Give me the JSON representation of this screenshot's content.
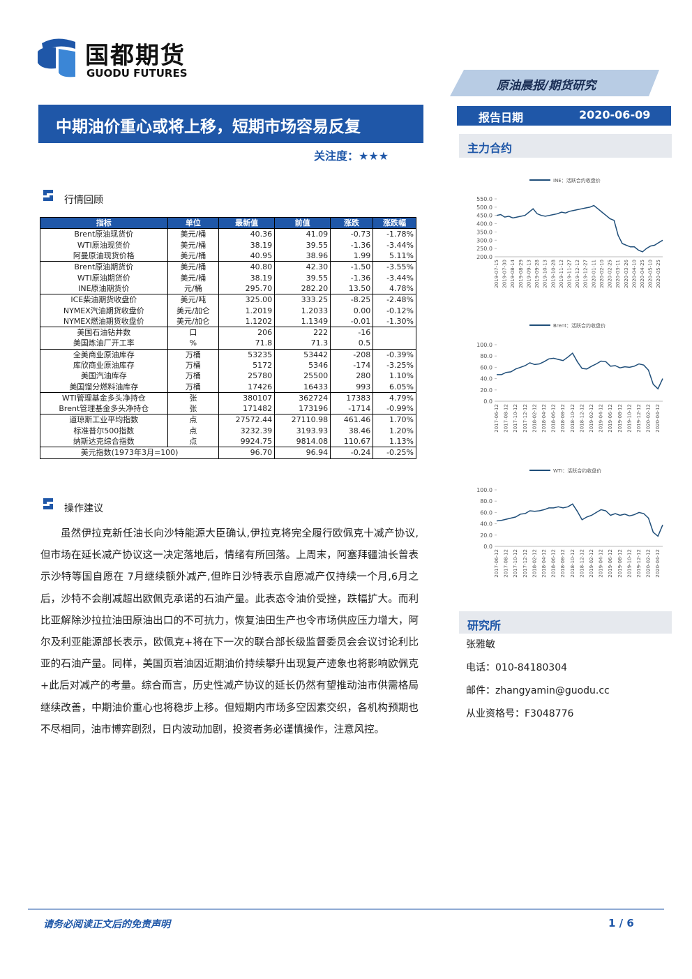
{
  "header": {
    "logo_cn": "国都期货",
    "logo_en": "GUODU FUTURES",
    "banner": "原油晨报/期货研究",
    "title": "中期油价重心或将上移，短期市场容易反复",
    "attention_label": "关注度：",
    "attention_stars": "★★★",
    "report_date_label": "报告日期",
    "report_date": "2020-06-09",
    "main_contract": "主力合约"
  },
  "section1": {
    "title": "行情回顾"
  },
  "table": {
    "header": [
      "指标",
      "单位",
      "最新值",
      "前值",
      "涨跌",
      "涨跌幅"
    ],
    "groups": [
      [
        [
          "Brent原油现货价",
          "美元/桶",
          "40.36",
          "41.09",
          "-0.73",
          "-1.78%"
        ],
        [
          "WTI原油现货价",
          "美元/桶",
          "38.19",
          "39.55",
          "-1.36",
          "-3.44%"
        ],
        [
          "阿曼原油现货价格",
          "美元/桶",
          "40.95",
          "38.96",
          "1.99",
          "5.11%"
        ]
      ],
      [
        [
          "Brent原油期货价",
          "美元/桶",
          "40.80",
          "42.30",
          "-1.50",
          "-3.55%"
        ],
        [
          "WTI原油期货价",
          "美元/桶",
          "38.19",
          "39.55",
          "-1.36",
          "-3.44%"
        ],
        [
          "INE原油期货价",
          "元/桶",
          "295.70",
          "282.20",
          "13.50",
          "4.78%"
        ]
      ],
      [
        [
          "ICE柴油期货收盘价",
          "美元/吨",
          "325.00",
          "333.25",
          "-8.25",
          "-2.48%"
        ],
        [
          "NYMEX汽油期货收盘价",
          "美元/加仑",
          "1.2019",
          "1.2033",
          "0.00",
          "-0.12%"
        ],
        [
          "NYMEX燃油期货收盘价",
          "美元/加仑",
          "1.1202",
          "1.1349",
          "-0.01",
          "-1.30%"
        ]
      ],
      [
        [
          "美国石油钻井数",
          "口",
          "206",
          "222",
          "-16"
        ],
        [
          "美国炼油厂开工率",
          "%",
          "71.8",
          "71.3",
          "0.5"
        ]
      ],
      [
        [
          "全美商业原油库存",
          "万桶",
          "53235",
          "53442",
          "-208",
          "-0.39%"
        ],
        [
          "库欣商业原油库存",
          "万桶",
          "5172",
          "5346",
          "-174",
          "-3.25%"
        ],
        [
          "美国汽油库存",
          "万桶",
          "25780",
          "25500",
          "280",
          "1.10%"
        ],
        [
          "美国馏分燃料油库存",
          "万桶",
          "17426",
          "16433",
          "993",
          "6.05%"
        ]
      ],
      [
        [
          "WTI管理基金多头净持仓",
          "张",
          "380107",
          "362724",
          "17383",
          "4.79%"
        ],
        [
          "Brent管理基金多头净持仓",
          "张",
          "171482",
          "173196",
          "-1714",
          "-0.99%"
        ]
      ],
      [
        [
          "道琼斯工业平均指数",
          "点",
          "27572.44",
          "27110.98",
          "461.46",
          "1.70%"
        ],
        [
          "标准普尔500指数",
          "点",
          "3232.39",
          "3193.93",
          "38.46",
          "1.20%"
        ],
        [
          "纳斯达克综合指数",
          "点",
          "9924.75",
          "9814.08",
          "110.67",
          "1.13%"
        ]
      ],
      [
        [
          "美元指数(1973年3月=100)",
          "96.70",
          "96.94",
          "-0.24",
          "-0.25%"
        ]
      ]
    ]
  },
  "section2": {
    "title": "操作建议",
    "text": "虽然伊拉克新任油长向沙特能源大臣确认,伊拉克将完全履行欧佩克十减产协议,但市场在延长减产协议这一决定落地后，情绪有所回落。上周末，阿塞拜疆油长曾表示沙特等国自愿在 7月继续额外减产,但昨日沙特表示自愿减产仅持续一个月,6月之后，沙特不会削减超出欧佩克承诺的石油产量。此表态令油价受挫，跌幅扩大。而利比亚解除沙拉拉油田原油出口的不可抗力，恢复油田生产也令市场供应压力增大，阿尔及利亚能源部长表示，欧佩克+将在下一次的联合部长级监督委员会会议讨论利比亚的石油产量。同样，美国页岩油因近期油价持续攀升出现复产迹象也将影响欧佩克+此后对减产的考量。综合而言，历史性减产协议的延长仍然有望推动油市供需格局继续改善，中期油价重心也将稳步上移。但短期内市场多空因素交织，各机构预期也不尽相同，油市博弈剧烈，日内波动加剧，投资者务必谨慎操作，注意风控。"
  },
  "research": {
    "title": "研究所",
    "name": "张雅敏",
    "phone": "电话：010-84180304",
    "email": "邮件：zhangyamin@guodu.cc",
    "license": "从业资格号：F3048776"
  },
  "footer": {
    "disclaimer": "请务必阅读正文后的免责声明",
    "page": "1 / 6"
  },
  "chart_data": [
    {
      "type": "line",
      "categories": [
        "2019-07-15",
        null,
        "2019-07-30",
        null,
        "2019-08-14",
        null,
        "2019-08-29",
        null,
        "2019-09-13",
        null,
        "2019-09-28",
        null,
        "2019-10-13",
        null,
        "2019-10-28",
        null,
        "2019-11-12",
        null,
        "2019-11-27",
        null,
        "2019-12-12",
        null,
        "2019-12-27",
        null,
        "2020-01-11",
        null,
        "2020-02-10",
        null,
        "2020-02-25",
        null,
        "2020-03-11",
        null,
        "2020-03-26",
        null,
        "2020-04-10",
        null,
        "2020-04-25",
        null,
        "2020-05-10",
        null,
        "2020-05-25",
        null
      ],
      "series": [
        {
          "name": "INE：活跃合约收盘价",
          "color": "#1f4e79",
          "values": [
            450,
            455,
            440,
            445,
            435,
            440,
            445,
            450,
            470,
            490,
            460,
            450,
            445,
            450,
            455,
            460,
            470,
            465,
            475,
            480,
            485,
            490,
            495,
            500,
            510,
            490,
            470,
            450,
            430,
            420,
            330,
            280,
            270,
            260,
            260,
            240,
            230,
            250,
            265,
            270,
            285,
            300
          ]
        }
      ],
      "ylim": [
        200,
        550
      ],
      "yticks": [
        {
          "value": 200,
          "label": "200.0"
        },
        {
          "value": 250,
          "label": "250.0"
        },
        {
          "value": 300,
          "label": "300.0"
        },
        {
          "value": 350,
          "label": "350.0"
        },
        {
          "value": 400,
          "label": "400.0"
        },
        {
          "value": 450,
          "label": "450.0"
        },
        {
          "value": 500,
          "label": "500.0"
        },
        {
          "value": 550,
          "label": "550.0"
        }
      ]
    },
    {
      "type": "line",
      "categories": [
        "2017-06-12",
        null,
        "2017-08-12",
        null,
        "2017-10-12",
        null,
        "2017-12-12",
        null,
        "2018-02-12",
        null,
        "2018-04-12",
        null,
        "2018-06-12",
        null,
        "2018-08-12",
        null,
        "2018-10-12",
        null,
        "2018-12-12",
        null,
        "2019-02-12",
        null,
        "2019-04-12",
        null,
        "2019-06-12",
        null,
        "2019-08-12",
        null,
        "2019-10-12",
        null,
        "2019-12-12",
        null,
        "2020-02-12",
        null,
        "2020-04-12",
        null
      ],
      "series": [
        {
          "name": "Brent：活跃合约收盘价",
          "color": "#1f4e79",
          "values": [
            47,
            47,
            51,
            52,
            57,
            60,
            63,
            68,
            65,
            66,
            70,
            75,
            76,
            74,
            72,
            78,
            85,
            70,
            58,
            57,
            62,
            66,
            71,
            70,
            62,
            63,
            59,
            61,
            60,
            62,
            66,
            64,
            55,
            30,
            22,
            40
          ]
        }
      ],
      "ylim": [
        0,
        100
      ],
      "yticks": [
        {
          "value": 0,
          "label": "0.0"
        },
        {
          "value": 20,
          "label": "20.0"
        },
        {
          "value": 40,
          "label": "40.0"
        },
        {
          "value": 60,
          "label": "60.0"
        },
        {
          "value": 80,
          "label": "80.0"
        },
        {
          "value": 100,
          "label": "100.0"
        }
      ]
    },
    {
      "type": "line",
      "categories": [
        "2017-06-12",
        null,
        "2017-08-12",
        null,
        "2017-10-12",
        null,
        "2017-12-12",
        null,
        "2018-02-12",
        null,
        "2018-04-12",
        null,
        "2018-06-12",
        null,
        "2018-08-12",
        null,
        "2018-10-12",
        null,
        "2018-12-12",
        null,
        "2019-02-12",
        null,
        "2019-04-12",
        null,
        "2019-06-12",
        null,
        "2019-08-12",
        null,
        "2019-10-12",
        null,
        "2019-12-12",
        null,
        "2020-02-12",
        null,
        "2020-04-12",
        null
      ],
      "series": [
        {
          "name": "WTI：活跃合约收盘价",
          "color": "#1f4e79",
          "values": [
            45,
            46,
            48,
            50,
            52,
            57,
            58,
            63,
            62,
            63,
            65,
            68,
            68,
            70,
            68,
            70,
            75,
            62,
            47,
            52,
            55,
            60,
            65,
            63,
            55,
            58,
            55,
            57,
            54,
            56,
            60,
            58,
            50,
            25,
            18,
            38
          ]
        }
      ],
      "ylim": [
        0,
        100
      ],
      "yticks": [
        {
          "value": 0,
          "label": "0.0"
        },
        {
          "value": 20,
          "label": "20.0"
        },
        {
          "value": 40,
          "label": "40.0"
        },
        {
          "value": 60,
          "label": "60.0"
        },
        {
          "value": 80,
          "label": "80.0"
        },
        {
          "value": 100,
          "label": "100.0"
        }
      ]
    }
  ]
}
